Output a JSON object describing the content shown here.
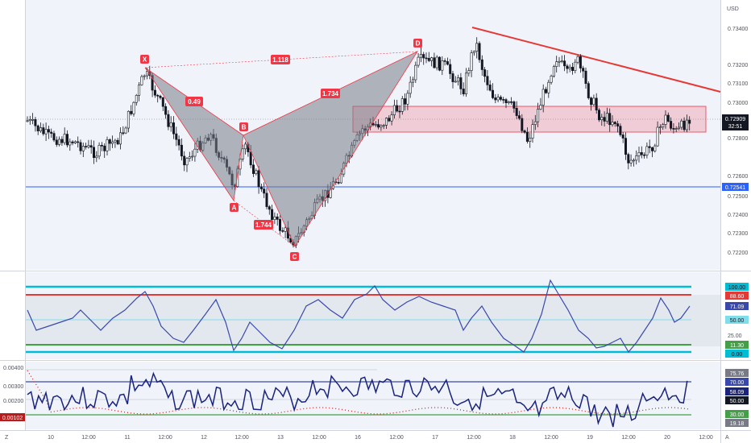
{
  "price_pane": {
    "currency": "USD",
    "axis_labels": [
      "0.73400",
      "0.73200",
      "0.73100",
      "0.73000",
      "0.72800",
      "0.72600",
      "0.72500",
      "0.72400",
      "0.72300",
      "0.72200"
    ],
    "last_price": "0.72909",
    "countdown": "32:51",
    "support_level": "0.72541",
    "pattern_points": {
      "X": "X",
      "A": "A",
      "B": "B",
      "C": "C",
      "D": "D"
    },
    "ratios": {
      "xb": "0.49",
      "ac": "1.744",
      "bd": "1.734",
      "xd": "1.118"
    },
    "colors": {
      "up": "#131722",
      "down": "#131722",
      "trend": "#e53935",
      "zone": "rgba(242,54,69,0.2)",
      "support": "#2962ff",
      "pattern_fill": "rgba(120,123,134,0.55)",
      "pattern_edge": "#f23645"
    }
  },
  "rsi_pane": {
    "tags": [
      "100.00",
      "88.60",
      "71.09",
      "50.00",
      "11.30",
      "0.00"
    ],
    "axis_labels": [
      "25.00"
    ],
    "colors": {
      "line": "#3949ab",
      "upper": "#e53935",
      "top": "#00bcd4",
      "mid": "#80deea",
      "lower": "#43a047"
    }
  },
  "osc_pane": {
    "axis_labels": [
      "0.00400",
      "0.00300",
      "0.00200"
    ],
    "left_tag": "0.00102",
    "tags": [
      "75.76",
      "70.00",
      "58.09",
      "50.00",
      "30.00",
      "19.18"
    ],
    "colors": {
      "line": "#1a237e",
      "dots": "#c62828",
      "level": "#3949ab",
      "green": "#43a047"
    }
  },
  "time_axis": {
    "left": "Z",
    "right": "A",
    "labels": [
      "10",
      "12:00",
      "11",
      "12:00",
      "12",
      "12:00",
      "13",
      "12:00",
      "16",
      "12:00",
      "17",
      "12:00",
      "18",
      "12:00",
      "19",
      "12:00",
      "20",
      "12:00"
    ]
  }
}
